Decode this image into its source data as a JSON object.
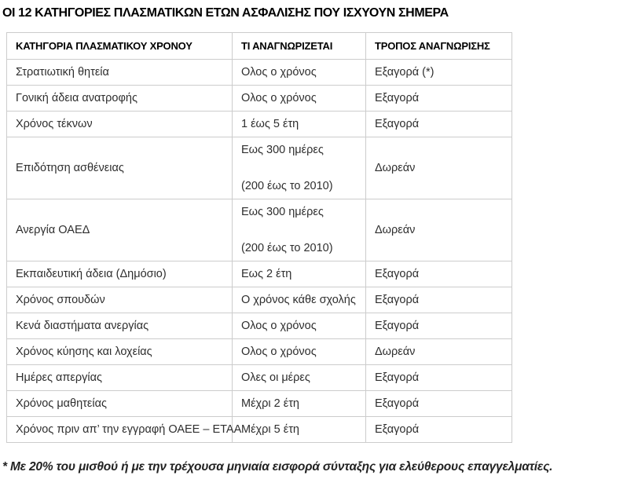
{
  "page": {
    "title": "ΟΙ 12 ΚΑΤΗΓΟΡΙΕΣ ΠΛΑΣΜΑΤΙΚΩΝ ΕΤΩΝ ΑΣΦΑΛΙΣΗΣ ΠΟΥ ΙΣΧΥΟΥΝ ΣΗΜΕΡΑ",
    "footnote": "* Με 20% του μισθού ή με την τρέχουσα μηνιαία εισφορά σύνταξης για ελεύθερους επαγγελματίες."
  },
  "colors": {
    "border": "#cccccc",
    "body_text": "#2e2e2e",
    "heading_text": "#000000"
  },
  "table": {
    "headers": [
      "ΚΑΤΗΓΟΡΙΑ ΠΛΑΣΜΑΤΙΚΟΥ ΧΡΟΝΟΥ",
      "ΤΙ ΑΝΑΓΝΩΡΙΖΕΤΑΙ",
      "ΤΡΟΠΟΣ ΑΝΑΓΝΩΡΙΣΗΣ"
    ],
    "rows": [
      {
        "category": "Στρατιωτική θητεία",
        "recognized": [
          "Ολος ο χρόνος"
        ],
        "method": "Εξαγορά (*)"
      },
      {
        "category": "Γονική άδεια ανατροφής",
        "recognized": [
          "Ολος ο χρόνος"
        ],
        "method": "Εξαγορά"
      },
      {
        "category": "Χρόνος τέκνων",
        "recognized": [
          "1 έως 5 έτη"
        ],
        "method": "Εξαγορά"
      },
      {
        "category": "Επιδότηση ασθένειας",
        "recognized": [
          "Εως 300 ημέρες",
          "(200 έως το 2010)"
        ],
        "method": "Δωρεάν"
      },
      {
        "category": "Ανεργία ΟΑΕΔ",
        "recognized": [
          "Εως 300 ημέρες",
          "(200 έως το 2010)"
        ],
        "method": "Δωρεάν"
      },
      {
        "category": "Εκπαιδευτική άδεια (Δημόσιο)",
        "recognized": [
          "Εως 2 έτη"
        ],
        "method": "Εξαγορά"
      },
      {
        "category": "Χρόνος σπουδών",
        "recognized": [
          "Ο χρόνος κάθε σχολής"
        ],
        "method": "Εξαγορά"
      },
      {
        "category": "Κενά διαστήματα ανεργίας",
        "recognized": [
          "Ολος ο χρόνος"
        ],
        "method": "Εξαγορά"
      },
      {
        "category": "Χρόνος κύησης και λοχείας",
        "recognized": [
          "Ολος ο χρόνος"
        ],
        "method": "Δωρεάν"
      },
      {
        "category": "Ημέρες απεργίας",
        "recognized": [
          "Ολες οι μέρες"
        ],
        "method": "Εξαγορά"
      },
      {
        "category": "Χρόνος μαθητείας",
        "recognized": [
          "Μέχρι 2 έτη"
        ],
        "method": "Εξαγορά"
      },
      {
        "category": "Χρόνος πριν απ’ την εγγραφή ΟΑΕΕ – ΕΤΑΑ",
        "recognized": [
          "Μέχρι 5 έτη"
        ],
        "method": "Εξαγορά"
      }
    ]
  }
}
